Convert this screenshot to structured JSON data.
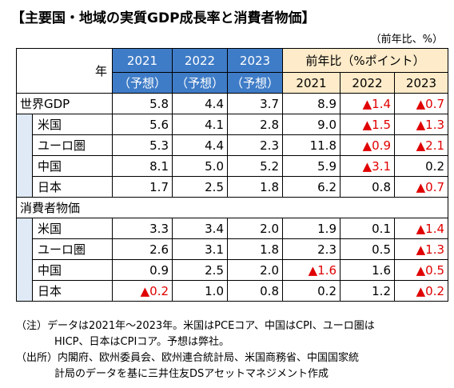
{
  "title": "【主要国・地域の実質GDP成長率と消費者物価】",
  "unit_note": "（前年比、%）",
  "chart_data": {
    "type": "table",
    "header": {
      "corner": "年",
      "forecast_years": [
        {
          "year": "2021",
          "note": "（予想）"
        },
        {
          "year": "2022",
          "note": "（予想）"
        },
        {
          "year": "2023",
          "note": "（予想）"
        }
      ],
      "diff_group": "前年比（%ポイント）",
      "diff_years": [
        "2021",
        "2022",
        "2023"
      ]
    },
    "sections": [
      {
        "label": "世界GDP",
        "values": [
          "5.8",
          "4.4",
          "3.7",
          "8.9",
          "▲1.4",
          "▲0.7"
        ],
        "rows": [
          {
            "label": "米国",
            "values": [
              "5.6",
              "4.1",
              "2.8",
              "9.0",
              "▲1.5",
              "▲1.3"
            ]
          },
          {
            "label": "ユーロ圏",
            "values": [
              "5.3",
              "4.4",
              "2.3",
              "11.8",
              "▲0.9",
              "▲2.1"
            ]
          },
          {
            "label": "中国",
            "values": [
              "8.1",
              "5.0",
              "5.2",
              "5.9",
              "▲3.1",
              "0.2"
            ]
          },
          {
            "label": "日本",
            "values": [
              "1.7",
              "2.5",
              "1.8",
              "6.2",
              "0.8",
              "▲0.7"
            ]
          }
        ]
      },
      {
        "label": "消費者物価",
        "values": null,
        "rows": [
          {
            "label": "米国",
            "values": [
              "3.3",
              "3.4",
              "2.0",
              "1.9",
              "0.1",
              "▲1.4"
            ]
          },
          {
            "label": "ユーロ圏",
            "values": [
              "2.6",
              "3.1",
              "1.8",
              "2.3",
              "0.5",
              "▲1.3"
            ]
          },
          {
            "label": "中国",
            "values": [
              "0.9",
              "2.5",
              "2.0",
              "▲1.6",
              "1.6",
              "▲0.5"
            ]
          },
          {
            "label": "日本",
            "values": [
              "▲0.2",
              "1.0",
              "0.8",
              "0.2",
              "1.2",
              "▲0.2"
            ]
          }
        ]
      }
    ],
    "negative_color": "#e00000",
    "header_blue": "#3f7cc7",
    "header_tan": "#fdebc9",
    "indent_blue": "#dfeaf6"
  },
  "notes": {
    "note_line1": "（注）データは2021年～2023年。米国はPCEコア、中国はCPI、ユーロ圏は",
    "note_line2": "HICP、日本はCPIコア。予想は弊社。",
    "source_line1": "（出所）内閣府、欧州委員会、欧州連合統計局、米国商務省、中国国家統",
    "source_line2": "計局のデータを基に三井住友DSアセットマネジメント作成"
  }
}
